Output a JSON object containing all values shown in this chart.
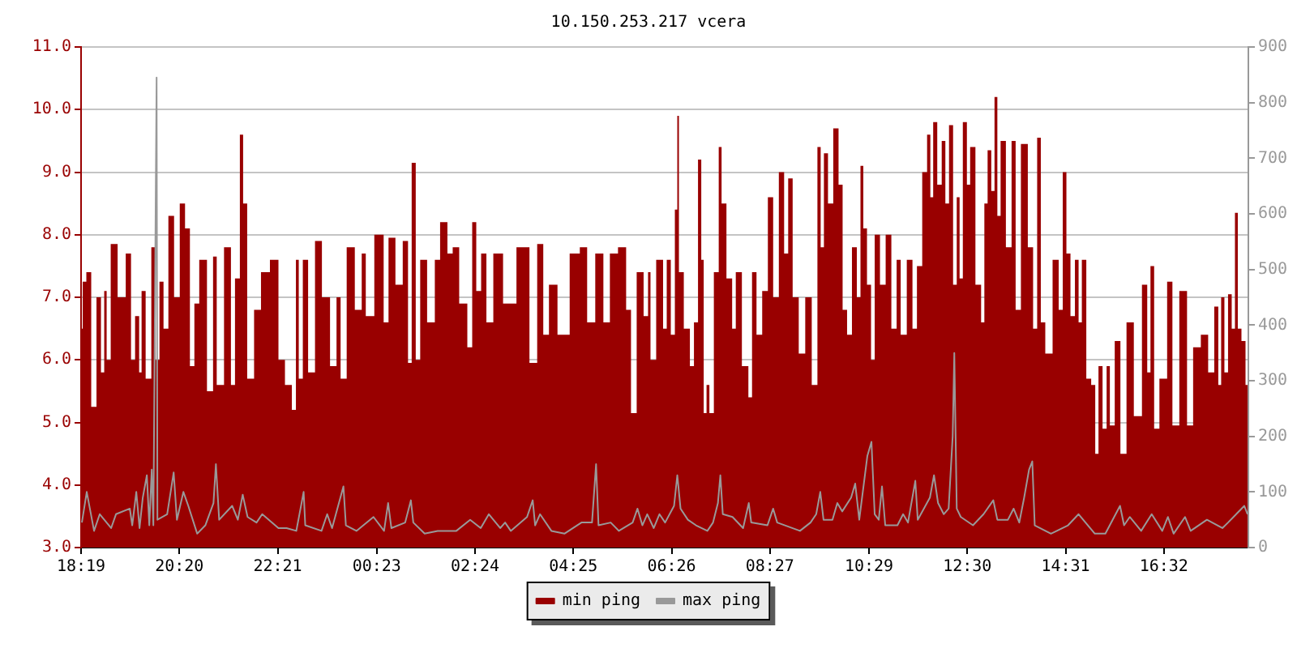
{
  "chart_data": {
    "type": "area",
    "title": "10.150.253.217 vcera",
    "legend": "bottom",
    "grid": "y",
    "xlim": [
      "--01-01T18:19",
      "--01-02T18:16"
    ],
    "xticks": [
      {
        "value": "--01-01T18:19",
        "label": "18:19"
      },
      {
        "value": "--01-01T20:20",
        "label": "20:20"
      },
      {
        "value": "--01-01T22:21",
        "label": "22:21"
      },
      {
        "value": "--01-02T00:23",
        "label": "00:23"
      },
      {
        "value": "--01-02T02:24",
        "label": "02:24"
      },
      {
        "value": "--01-02T04:25",
        "label": "04:25"
      },
      {
        "value": "--01-02T06:26",
        "label": "06:26"
      },
      {
        "value": "--01-02T08:27",
        "label": "08:27"
      },
      {
        "value": "--01-02T10:29",
        "label": "10:29"
      },
      {
        "value": "--01-02T12:30",
        "label": "12:30"
      },
      {
        "value": "--01-02T14:31",
        "label": "14:31"
      },
      {
        "value": "--01-02T16:32",
        "label": "16:32"
      }
    ],
    "ylim": [
      3,
      11
    ],
    "yticks": [
      {
        "value": 3,
        "label": "3.0"
      },
      {
        "value": 4,
        "label": "4.0"
      },
      {
        "value": 5,
        "label": "5.0"
      },
      {
        "value": 6,
        "label": "6.0"
      },
      {
        "value": 7,
        "label": "7.0"
      },
      {
        "value": 8,
        "label": "8.0"
      },
      {
        "value": 9,
        "label": "9.0"
      },
      {
        "value": 10,
        "label": "10.0"
      },
      {
        "value": 11,
        "label": "11.0"
      }
    ],
    "y2lim": [
      0,
      900
    ],
    "y2ticks": [
      0,
      100,
      200,
      300,
      400,
      500,
      600,
      700,
      800,
      900
    ],
    "series": [
      {
        "name": "min ping",
        "color": "#990000",
        "x": [
          "--01-01T18:19",
          "--01-01T18:23",
          "--01-01T18:28",
          "--01-01T18:35",
          "--01-01T18:41",
          "--01-01T18:46",
          "--01-01T18:49",
          "--01-01T18:52",
          "--01-01T18:59",
          "--01-01T19:09",
          "--01-01T19:19",
          "--01-01T19:22",
          "--01-01T19:29",
          "--01-01T19:32",
          "--01-01T19:35",
          "--01-01T19:42",
          "--01-01T19:49",
          "--01-01T19:52",
          "--01-01T19:59",
          "--01-01T20:02",
          "--01-01T20:11",
          "--01-01T20:16",
          "--01-01T20:25",
          "--01-01T20:29",
          "--01-01T20:37",
          "--01-01T20:40",
          "--01-01T20:49",
          "--01-01T20:59",
          "--01-01T21:04",
          "--01-01T21:08",
          "--01-01T21:22",
          "--01-01T21:25",
          "--01-01T21:32",
          "--01-01T21:37",
          "--01-01T21:40",
          "--01-01T21:47",
          "--01-01T21:57",
          "--01-01T22:04",
          "--01-01T22:19",
          "--01-01T22:25",
          "--01-01T22:35",
          "--01-01T22:42",
          "--01-01T22:45",
          "--01-01T22:49",
          "--01-01T22:55",
          "--01-01T23:02",
          "--01-01T23:12",
          "--01-01T23:19",
          "--01-01T23:32",
          "--01-01T23:35",
          "--01-01T23:42",
          "--01-01T23:50",
          "--01-02T00:02",
          "--01-02T00:07",
          "--01-02T00:12",
          "--01-02T00:28",
          "--01-02T00:35",
          "--01-02T00:40",
          "--01-02T00:52",
          "--01-02T00:58",
          "--01-02T01:05",
          "--01-02T01:07",
          "--01-02T01:15",
          "--01-02T01:18",
          "--01-02T01:32",
          "--01-02T01:37",
          "--01-02T01:45",
          "--01-02T01:55",
          "--01-02T01:58",
          "--01-02T02:11",
          "--01-02T02:18",
          "--01-02T02:23",
          "--01-02T02:28",
          "--01-02T02:35",
          "--01-02T02:41",
          "--01-02T02:52",
          "--01-02T03:05",
          "--01-02T03:25",
          "--01-02T03:37",
          "--01-02T03:44",
          "--01-02T03:52",
          "--01-02T03:58",
          "--01-02T04:13",
          "--01-02T04:28",
          "--01-02T04:38",
          "--01-02T04:46",
          "--01-02T04:58",
          "--01-02T05:06",
          "--01-02T05:14",
          "--01-02T05:26",
          "--01-02T05:34",
          "--01-02T05:38",
          "--01-02T05:48",
          "--01-02T05:55",
          "--01-02T05:59",
          "--01-02T06:01",
          "--01-02T06:13",
          "--01-02T06:18",
          "--01-02T06:22",
          "--01-02T06:28",
          "--01-02T06:32",
          "--01-02T06:34",
          "--01-02T06:36",
          "--01-02T06:46",
          "--01-02T06:51",
          "--01-02T06:56",
          "--01-02T07:01",
          "--01-02T07:04",
          "--01-02T07:07",
          "--01-02T07:11",
          "--01-02T07:14",
          "--01-02T07:22",
          "--01-02T07:26",
          "--01-02T07:29",
          "--01-02T07:38",
          "--01-02T07:43",
          "--01-02T07:47",
          "--01-02T07:58",
          "--01-02T08:03",
          "--01-02T08:07",
          "--01-02T08:14",
          "--01-02T08:21",
          "--01-02T08:28",
          "--01-02T08:34",
          "--01-02T08:42",
          "--01-02T08:47",
          "--01-02T08:52",
          "--01-02T08:58",
          "--01-02T09:07",
          "--01-02T09:14",
          "--01-02T09:23",
          "--01-02T09:28",
          "--01-02T09:31",
          "--01-02T09:36",
          "--01-02T09:41",
          "--01-02T09:49",
          "--01-02T09:54",
          "--01-02T09:59",
          "--01-02T10:05",
          "--01-02T10:11",
          "--01-02T10:17",
          "--01-02T10:20",
          "--01-02T10:24",
          "--01-02T10:29",
          "--01-02T10:34",
          "--01-02T10:38",
          "--01-02T10:47",
          "--01-02T10:52",
          "--01-02T11:01",
          "--01-02T11:05",
          "--01-02T11:11",
          "--01-02T11:20",
          "--01-02T11:25",
          "--01-02T11:31",
          "--01-02T11:38",
          "--01-02T11:43",
          "--01-02T11:46",
          "--01-02T11:50",
          "--01-02T11:56",
          "--01-02T12:01",
          "--01-02T12:05",
          "--01-02T12:10",
          "--01-02T12:15",
          "--01-02T12:19",
          "--01-02T12:22",
          "--01-02T12:27",
          "--01-02T12:32",
          "--01-02T12:35",
          "--01-02T12:45",
          "--01-02T12:49",
          "--01-02T12:53",
          "--01-02T12:57",
          "--01-02T13:02",
          "--01-02T13:05",
          "--01-02T13:09",
          "--01-02T13:13",
          "--01-02T13:22",
          "--01-02T13:27",
          "--01-02T13:32",
          "--01-02T13:40",
          "--01-02T13:49",
          "--01-02T13:53",
          "--01-02T13:59",
          "--01-02T14:02",
          "--01-02T14:10",
          "--01-02T14:20",
          "--01-02T14:25",
          "--01-02T14:30",
          "--01-02T14:34",
          "--01-02T14:40",
          "--01-02T14:45",
          "--01-02T14:49",
          "--01-02T14:53",
          "--01-02T15:00",
          "--01-02T15:05",
          "--01-02T15:10",
          "--01-02T15:13",
          "--01-02T15:20",
          "--01-02T15:23",
          "--01-02T15:28",
          "--01-02T15:35",
          "--01-02T15:42",
          "--01-02T15:50",
          "--01-02T16:00",
          "--01-02T16:10",
          "--01-02T16:13",
          "--01-02T16:18",
          "--01-02T16:22",
          "--01-02T16:31",
          "--01-02T16:41",
          "--01-02T16:44",
          "--01-02T16:58",
          "--01-02T17:03",
          "--01-02T17:13",
          "--01-02T17:22",
          "--01-02T17:31",
          "--01-02T17:37",
          "--01-02T17:41",
          "--01-02T17:44",
          "--01-02T17:49",
          "--01-02T17:53",
          "--01-02T17:58",
          "--01-02T18:01",
          "--01-02T18:05",
          "--01-02T18:10",
          "--01-02T18:15"
        ],
        "values": [
          6.5,
          7.25,
          7.4,
          5.25,
          7.0,
          5.8,
          7.1,
          6.0,
          7.85,
          7.0,
          7.7,
          6.0,
          6.7,
          5.8,
          7.1,
          5.7,
          7.8,
          6.0,
          7.25,
          6.5,
          8.3,
          7.0,
          8.5,
          8.1,
          5.9,
          6.9,
          7.6,
          5.5,
          7.65,
          5.6,
          7.8,
          5.6,
          7.3,
          9.6,
          8.5,
          5.7,
          6.8,
          7.4,
          7.6,
          6.0,
          5.6,
          5.2,
          7.6,
          5.7,
          7.6,
          5.8,
          7.9,
          7.0,
          5.9,
          7.0,
          5.7,
          7.8,
          6.8,
          7.7,
          6.7,
          8.0,
          6.6,
          7.95,
          7.2,
          7.9,
          5.95,
          9.15,
          6.0,
          7.6,
          6.6,
          7.6,
          8.2,
          7.7,
          7.8,
          6.9,
          6.2,
          8.2,
          7.1,
          7.7,
          6.6,
          7.7,
          6.9,
          7.8,
          5.95,
          7.85,
          6.4,
          7.2,
          6.4,
          7.7,
          7.8,
          6.6,
          7.7,
          6.6,
          7.7,
          7.8,
          6.8,
          5.15,
          7.4,
          6.7,
          7.4,
          6.0,
          7.6,
          6.5,
          7.6,
          6.4,
          8.4,
          9.9,
          7.4,
          6.5,
          5.9,
          6.6,
          9.2,
          7.6,
          5.15,
          5.6,
          5.15,
          7.4,
          9.4,
          8.5,
          7.3,
          6.5,
          7.4,
          5.9,
          5.4,
          7.4,
          6.4,
          7.1,
          8.6,
          7.0,
          9.0,
          7.7,
          8.9,
          7.0,
          6.1,
          7.0,
          5.6,
          9.4,
          7.8,
          9.3,
          8.5,
          9.7,
          8.8,
          6.8,
          6.4,
          7.8,
          7.0,
          9.1,
          8.1,
          7.2,
          6.0,
          8.0,
          7.2,
          8.0,
          6.5,
          7.6,
          6.4,
          7.6,
          6.5,
          7.5,
          9.0,
          9.6,
          8.6,
          9.8,
          8.8,
          9.5,
          8.5,
          9.75,
          7.2,
          8.6,
          7.3,
          9.8,
          8.8,
          9.4,
          7.2,
          6.6,
          8.5,
          9.35,
          8.7,
          10.2,
          8.3,
          9.5,
          7.8,
          9.5,
          6.8,
          9.45,
          7.8,
          6.5,
          9.55,
          6.6,
          6.1,
          7.6,
          6.8,
          9.0,
          7.7,
          6.7,
          7.6,
          6.6,
          7.6,
          5.7,
          5.6,
          4.5,
          5.9,
          4.9,
          5.9,
          4.95,
          6.3,
          4.5,
          6.6,
          5.1,
          7.2,
          5.8,
          7.5,
          4.9,
          5.7,
          7.25,
          4.95,
          7.1,
          4.95,
          6.2,
          6.4,
          5.8,
          6.85,
          5.6,
          7.0,
          5.8,
          7.05,
          6.5,
          8.35,
          6.5,
          6.3,
          5.6
        ]
      },
      {
        "name": "max ping",
        "type": "line",
        "color": "#999999",
        "axis": "y2",
        "x": [
          "--01-01T18:20",
          "--01-01T18:26",
          "--01-01T18:35",
          "--01-01T18:42",
          "--01-01T18:56",
          "--01-01T19:02",
          "--01-01T19:19",
          "--01-01T19:22",
          "--01-01T19:27",
          "--01-01T19:31",
          "--01-01T19:35",
          "--01-01T19:40",
          "--01-01T19:43",
          "--01-01T19:46",
          "--01-01T19:48",
          "--01-01T19:52",
          "--01-01T19:53",
          "--01-01T20:05",
          "--01-01T20:13",
          "--01-01T20:17",
          "--01-01T20:25",
          "--01-01T20:31",
          "--01-01T20:42",
          "--01-01T20:52",
          "--01-01T21:02",
          "--01-01T21:05",
          "--01-01T21:09",
          "--01-01T21:25",
          "--01-01T21:32",
          "--01-01T21:38",
          "--01-01T21:44",
          "--01-01T21:55",
          "--01-01T22:02",
          "--01-01T22:22",
          "--01-01T22:32",
          "--01-01T22:44",
          "--01-01T22:53",
          "--01-01T22:55",
          "--01-01T23:15",
          "--01-01T23:22",
          "--01-01T23:28",
          "--01-01T23:42",
          "--01-01T23:45",
          "--01-01T23:58",
          "--01-02T00:19",
          "--01-02T00:32",
          "--01-02T00:37",
          "--01-02T00:41",
          "--01-02T00:58",
          "--01-02T01:05",
          "--01-02T01:08",
          "--01-02T01:22",
          "--01-02T01:38",
          "--01-02T01:55",
          "--01-02T02:01",
          "--01-02T02:18",
          "--01-02T02:31",
          "--01-02T02:41",
          "--01-02T02:55",
          "--01-02T03:01",
          "--01-02T03:08",
          "--01-02T03:28",
          "--01-02T03:35",
          "--01-02T03:38",
          "--01-02T03:44",
          "--01-02T03:58",
          "--01-02T04:14",
          "--01-02T04:35",
          "--01-02T04:48",
          "--01-02T04:53",
          "--01-02T04:56",
          "--01-02T05:11",
          "--01-02T05:21",
          "--01-02T05:38",
          "--01-02T05:44",
          "--01-02T05:50",
          "--01-02T05:56",
          "--01-02T06:04",
          "--01-02T06:11",
          "--01-02T06:18",
          "--01-02T06:29",
          "--01-02T06:33",
          "--01-02T06:37",
          "--01-02T06:46",
          "--01-02T06:56",
          "--01-02T07:10",
          "--01-02T07:17",
          "--01-02T07:23",
          "--01-02T07:26",
          "--01-02T07:29",
          "--01-02T07:41",
          "--01-02T07:54",
          "--01-02T08:01",
          "--01-02T08:04",
          "--01-02T08:24",
          "--01-02T08:31",
          "--01-02T08:36",
          "--01-02T09:04",
          "--01-02T09:17",
          "--01-02T09:24",
          "--01-02T09:29",
          "--01-02T09:33",
          "--01-02T09:44",
          "--01-02T09:50",
          "--01-02T09:56",
          "--01-02T10:07",
          "--01-02T10:12",
          "--01-02T10:17",
          "--01-02T10:27",
          "--01-02T10:32",
          "--01-02T10:36",
          "--01-02T10:41",
          "--01-02T10:45",
          "--01-02T10:49",
          "--01-02T11:04",
          "--01-02T11:11",
          "--01-02T11:17",
          "--01-02T11:26",
          "--01-02T11:29",
          "--01-02T11:44",
          "--01-02T11:49",
          "--01-02T11:54",
          "--01-02T12:01",
          "--01-02T12:07",
          "--01-02T12:12",
          "--01-02T12:14",
          "--01-02T12:17",
          "--01-02T12:22",
          "--01-02T12:37",
          "--01-02T12:50",
          "--01-02T13:02",
          "--01-02T13:07",
          "--01-02T13:20",
          "--01-02T13:27",
          "--01-02T13:34",
          "--01-02T13:40",
          "--01-02T13:46",
          "--01-02T13:50",
          "--01-02T13:53",
          "--01-02T14:13",
          "--01-02T14:34",
          "--01-02T14:47",
          "--01-02T15:07",
          "--01-02T15:20",
          "--01-02T15:38",
          "--01-02T15:43",
          "--01-02T15:50",
          "--01-02T16:04",
          "--01-02T16:17",
          "--01-02T16:30",
          "--01-02T16:37",
          "--01-02T16:44",
          "--01-02T16:58",
          "--01-02T17:05",
          "--01-02T17:25",
          "--01-02T17:44",
          "--01-02T17:51",
          "--01-02T18:11",
          "--01-02T18:15"
        ],
        "values": [
          45,
          100,
          30,
          60,
          35,
          60,
          70,
          40,
          100,
          35,
          90,
          130,
          40,
          140,
          40,
          845,
          50,
          60,
          135,
          50,
          100,
          75,
          25,
          40,
          80,
          150,
          50,
          75,
          50,
          95,
          55,
          45,
          60,
          35,
          35,
          30,
          100,
          40,
          30,
          60,
          35,
          110,
          40,
          30,
          55,
          30,
          80,
          35,
          45,
          85,
          45,
          25,
          30,
          30,
          30,
          50,
          35,
          60,
          35,
          45,
          30,
          55,
          85,
          40,
          60,
          30,
          25,
          45,
          45,
          150,
          40,
          45,
          30,
          45,
          70,
          40,
          60,
          35,
          60,
          45,
          75,
          130,
          70,
          50,
          40,
          30,
          45,
          80,
          130,
          60,
          55,
          35,
          80,
          45,
          40,
          70,
          45,
          30,
          45,
          60,
          100,
          50,
          50,
          80,
          65,
          90,
          115,
          50,
          165,
          190,
          60,
          50,
          110,
          40,
          40,
          60,
          45,
          120,
          50,
          90,
          130,
          80,
          60,
          70,
          200,
          350,
          70,
          55,
          40,
          60,
          85,
          50,
          50,
          70,
          45,
          90,
          140,
          155,
          40,
          25,
          40,
          60,
          25,
          25,
          75,
          40,
          55,
          30,
          60,
          30,
          55,
          25,
          55,
          30,
          50,
          35,
          45,
          75,
          60
        ]
      }
    ]
  }
}
